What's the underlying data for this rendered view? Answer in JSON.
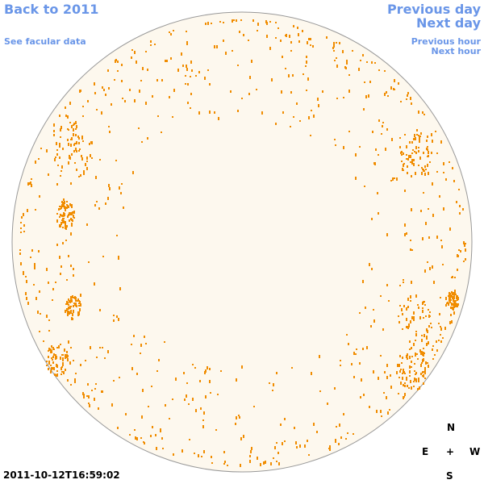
{
  "links": {
    "back": "Back to 2011",
    "facular": "See facular data",
    "prev_day": "Previous day",
    "next_day": "Next day",
    "prev_hour": "Previous hour",
    "next_hour": "Next hour"
  },
  "timestamp": "2011-10-12T16:59:02",
  "compass": {
    "north": "N",
    "east": "E",
    "center": "+",
    "west": "W",
    "south": "S"
  }
}
